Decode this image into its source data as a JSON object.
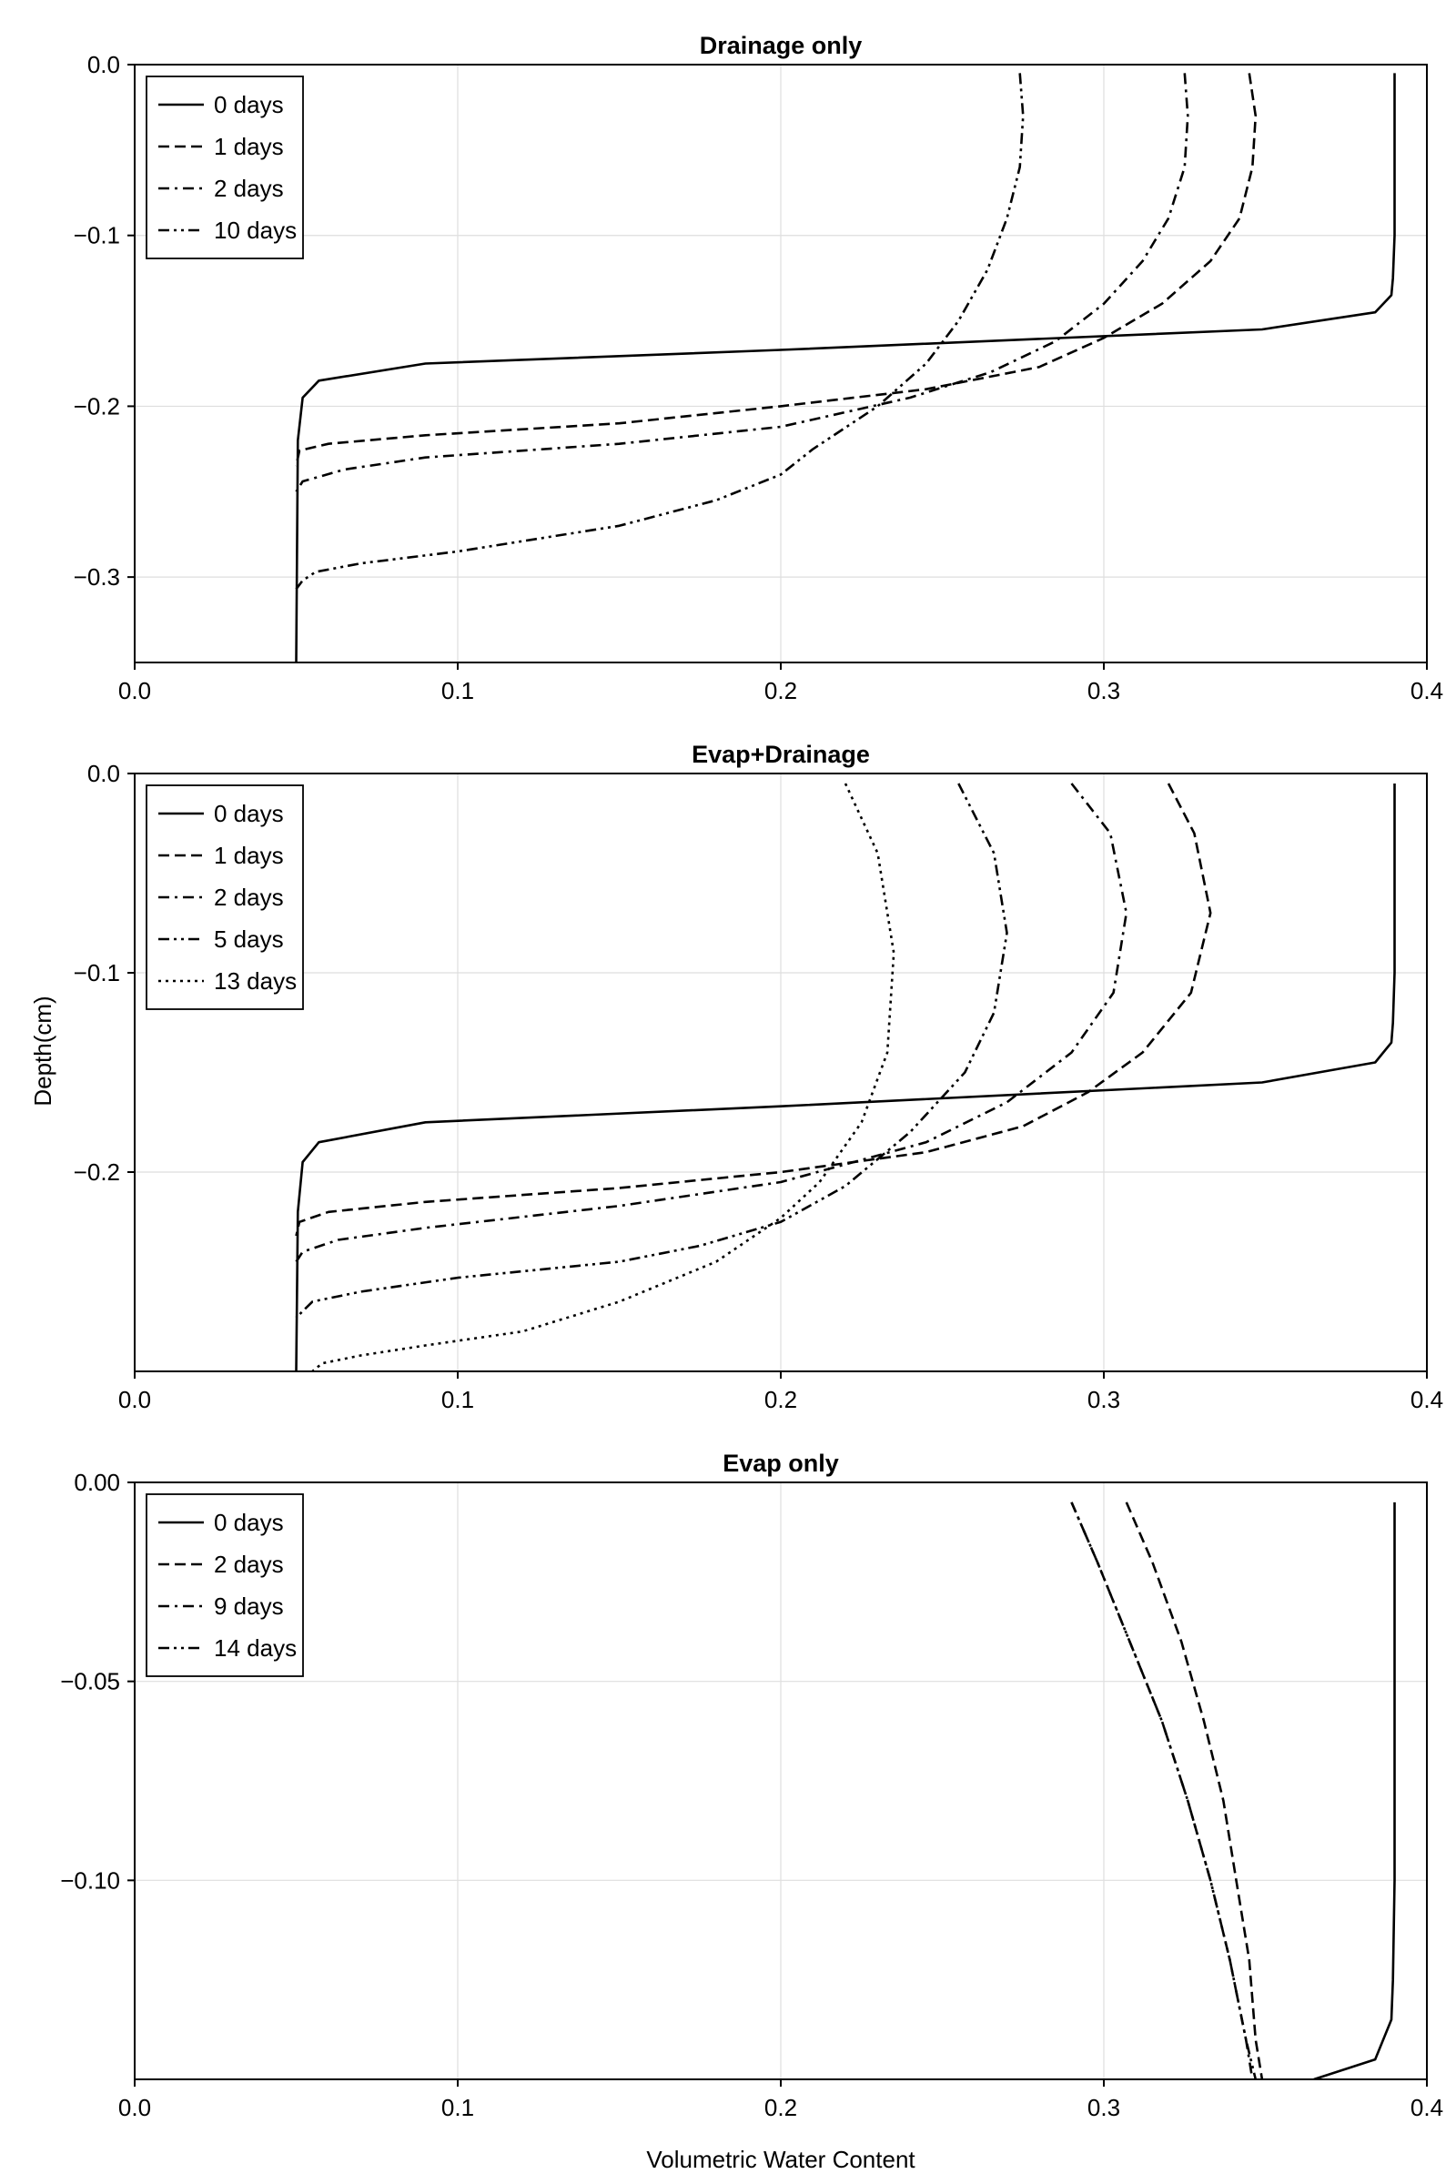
{
  "figure": {
    "ylabel": "Depth(cm)",
    "xlabel": "Volumetric Water Content"
  },
  "chart_data": [
    {
      "type": "line",
      "title": "Drainage only",
      "xlim": [
        0.0,
        0.4
      ],
      "ylim": [
        -0.35,
        0.0
      ],
      "xticks": [
        "0.0",
        "0.1",
        "0.2",
        "0.3",
        "0.4"
      ],
      "yticks": [
        "0.0",
        "−0.1",
        "−0.2",
        "−0.3"
      ],
      "ytick_values": [
        0.0,
        -0.1,
        -0.2,
        -0.3
      ],
      "grid": true,
      "legend_position": "top-left",
      "series": [
        {
          "name": "0 days",
          "style": "solid",
          "points": [
            [
              0.39,
              -0.005
            ],
            [
              0.39,
              -0.1
            ],
            [
              0.3895,
              -0.125
            ],
            [
              0.389,
              -0.135
            ],
            [
              0.384,
              -0.145
            ],
            [
              0.349,
              -0.155
            ],
            [
              0.2,
              -0.167
            ],
            [
              0.09,
              -0.175
            ],
            [
              0.057,
              -0.185
            ],
            [
              0.052,
              -0.195
            ],
            [
              0.0505,
              -0.22
            ],
            [
              0.05,
              -0.35
            ]
          ]
        },
        {
          "name": "1 days",
          "style": "dashed",
          "points": [
            [
              0.345,
              -0.005
            ],
            [
              0.347,
              -0.03
            ],
            [
              0.346,
              -0.06
            ],
            [
              0.342,
              -0.09
            ],
            [
              0.333,
              -0.115
            ],
            [
              0.318,
              -0.14
            ],
            [
              0.3,
              -0.16
            ],
            [
              0.28,
              -0.177
            ],
            [
              0.245,
              -0.19
            ],
            [
              0.2,
              -0.2
            ],
            [
              0.15,
              -0.21
            ],
            [
              0.09,
              -0.217
            ],
            [
              0.06,
              -0.222
            ],
            [
              0.051,
              -0.226
            ],
            [
              0.05,
              -0.235
            ]
          ]
        },
        {
          "name": "2 days",
          "style": "dashdot",
          "points": [
            [
              0.325,
              -0.005
            ],
            [
              0.326,
              -0.03
            ],
            [
              0.325,
              -0.06
            ],
            [
              0.32,
              -0.09
            ],
            [
              0.312,
              -0.115
            ],
            [
              0.3,
              -0.14
            ],
            [
              0.285,
              -0.162
            ],
            [
              0.265,
              -0.18
            ],
            [
              0.24,
              -0.195
            ],
            [
              0.2,
              -0.212
            ],
            [
              0.15,
              -0.222
            ],
            [
              0.09,
              -0.23
            ],
            [
              0.065,
              -0.237
            ],
            [
              0.052,
              -0.244
            ],
            [
              0.05,
              -0.25
            ]
          ]
        },
        {
          "name": "10 days",
          "style": "dashdotdot",
          "points": [
            [
              0.274,
              -0.005
            ],
            [
              0.275,
              -0.03
            ],
            [
              0.274,
              -0.06
            ],
            [
              0.27,
              -0.09
            ],
            [
              0.264,
              -0.12
            ],
            [
              0.255,
              -0.15
            ],
            [
              0.245,
              -0.175
            ],
            [
              0.23,
              -0.2
            ],
            [
              0.21,
              -0.225
            ],
            [
              0.2,
              -0.24
            ],
            [
              0.18,
              -0.255
            ],
            [
              0.15,
              -0.27
            ],
            [
              0.1,
              -0.285
            ],
            [
              0.07,
              -0.292
            ],
            [
              0.056,
              -0.297
            ],
            [
              0.052,
              -0.302
            ],
            [
              0.05,
              -0.307
            ]
          ]
        }
      ]
    },
    {
      "type": "line",
      "title": "Evap+Drainage",
      "xlim": [
        0.0,
        0.4
      ],
      "ylim": [
        -0.3,
        0.0
      ],
      "xticks": [
        "0.0",
        "0.1",
        "0.2",
        "0.3",
        "0.4"
      ],
      "yticks": [
        "0.0",
        "−0.1",
        "−0.2"
      ],
      "ytick_values": [
        0.0,
        -0.1,
        -0.2
      ],
      "grid": true,
      "legend_position": "top-left",
      "series": [
        {
          "name": "0 days",
          "style": "solid",
          "points": [
            [
              0.39,
              -0.005
            ],
            [
              0.39,
              -0.1
            ],
            [
              0.3895,
              -0.125
            ],
            [
              0.389,
              -0.135
            ],
            [
              0.384,
              -0.145
            ],
            [
              0.349,
              -0.155
            ],
            [
              0.2,
              -0.167
            ],
            [
              0.09,
              -0.175
            ],
            [
              0.057,
              -0.185
            ],
            [
              0.052,
              -0.195
            ],
            [
              0.0505,
              -0.22
            ],
            [
              0.05,
              -0.3
            ]
          ]
        },
        {
          "name": "1 days",
          "style": "dashed",
          "points": [
            [
              0.32,
              -0.005
            ],
            [
              0.328,
              -0.03
            ],
            [
              0.333,
              -0.07
            ],
            [
              0.327,
              -0.11
            ],
            [
              0.312,
              -0.14
            ],
            [
              0.295,
              -0.16
            ],
            [
              0.275,
              -0.177
            ],
            [
              0.245,
              -0.19
            ],
            [
              0.2,
              -0.2
            ],
            [
              0.15,
              -0.208
            ],
            [
              0.09,
              -0.215
            ],
            [
              0.06,
              -0.22
            ],
            [
              0.051,
              -0.225
            ],
            [
              0.05,
              -0.232
            ]
          ]
        },
        {
          "name": "2 days",
          "style": "dashdot",
          "points": [
            [
              0.29,
              -0.005
            ],
            [
              0.302,
              -0.03
            ],
            [
              0.307,
              -0.07
            ],
            [
              0.303,
              -0.11
            ],
            [
              0.29,
              -0.14
            ],
            [
              0.27,
              -0.165
            ],
            [
              0.245,
              -0.185
            ],
            [
              0.2,
              -0.205
            ],
            [
              0.15,
              -0.217
            ],
            [
              0.09,
              -0.228
            ],
            [
              0.063,
              -0.234
            ],
            [
              0.052,
              -0.24
            ],
            [
              0.05,
              -0.245
            ]
          ]
        },
        {
          "name": "5 days",
          "style": "dashdotdot",
          "points": [
            [
              0.255,
              -0.005
            ],
            [
              0.266,
              -0.04
            ],
            [
              0.27,
              -0.08
            ],
            [
              0.266,
              -0.12
            ],
            [
              0.257,
              -0.15
            ],
            [
              0.24,
              -0.18
            ],
            [
              0.22,
              -0.207
            ],
            [
              0.2,
              -0.225
            ],
            [
              0.175,
              -0.237
            ],
            [
              0.15,
              -0.245
            ],
            [
              0.1,
              -0.253
            ],
            [
              0.07,
              -0.26
            ],
            [
              0.055,
              -0.265
            ],
            [
              0.05,
              -0.273
            ]
          ]
        },
        {
          "name": "13 days",
          "style": "dotted",
          "points": [
            [
              0.22,
              -0.005
            ],
            [
              0.23,
              -0.04
            ],
            [
              0.235,
              -0.09
            ],
            [
              0.233,
              -0.14
            ],
            [
              0.225,
              -0.175
            ],
            [
              0.212,
              -0.205
            ],
            [
              0.2,
              -0.223
            ],
            [
              0.18,
              -0.245
            ],
            [
              0.15,
              -0.265
            ],
            [
              0.12,
              -0.28
            ],
            [
              0.09,
              -0.287
            ],
            [
              0.07,
              -0.292
            ],
            [
              0.058,
              -0.296
            ],
            [
              0.055,
              -0.3
            ]
          ]
        }
      ]
    },
    {
      "type": "line",
      "title": "Evap only",
      "xlim": [
        0.0,
        0.4
      ],
      "ylim": [
        -0.15,
        0.0
      ],
      "xticks": [
        "0.0",
        "0.1",
        "0.2",
        "0.3",
        "0.4"
      ],
      "yticks": [
        "0.00",
        "−0.05",
        "−0.10"
      ],
      "ytick_values": [
        0.0,
        -0.05,
        -0.1
      ],
      "grid": true,
      "legend_position": "top-left",
      "series": [
        {
          "name": "0 days",
          "style": "solid",
          "points": [
            [
              0.39,
              -0.005
            ],
            [
              0.39,
              -0.1
            ],
            [
              0.3895,
              -0.125
            ],
            [
              0.389,
              -0.135
            ],
            [
              0.384,
              -0.145
            ],
            [
              0.365,
              -0.15
            ]
          ]
        },
        {
          "name": "2 days",
          "style": "dashed",
          "points": [
            [
              0.307,
              -0.005
            ],
            [
              0.315,
              -0.02
            ],
            [
              0.324,
              -0.04
            ],
            [
              0.331,
              -0.06
            ],
            [
              0.337,
              -0.08
            ],
            [
              0.341,
              -0.1
            ],
            [
              0.345,
              -0.12
            ],
            [
              0.347,
              -0.14
            ],
            [
              0.349,
              -0.15
            ]
          ]
        },
        {
          "name": "9 days",
          "style": "dashdot",
          "points": [
            [
              0.29,
              -0.005
            ],
            [
              0.298,
              -0.02
            ],
            [
              0.308,
              -0.04
            ],
            [
              0.318,
              -0.06
            ],
            [
              0.326,
              -0.08
            ],
            [
              0.333,
              -0.1
            ],
            [
              0.339,
              -0.12
            ],
            [
              0.344,
              -0.14
            ],
            [
              0.346,
              -0.15
            ]
          ]
        },
        {
          "name": "14 days",
          "style": "dashdotdot",
          "points": [
            [
              0.29,
              -0.005
            ],
            [
              0.298,
              -0.02
            ],
            [
              0.308,
              -0.04
            ],
            [
              0.318,
              -0.06
            ],
            [
              0.326,
              -0.08
            ],
            [
              0.333,
              -0.1
            ],
            [
              0.339,
              -0.12
            ],
            [
              0.344,
              -0.14
            ],
            [
              0.347,
              -0.15
            ]
          ]
        }
      ]
    }
  ]
}
